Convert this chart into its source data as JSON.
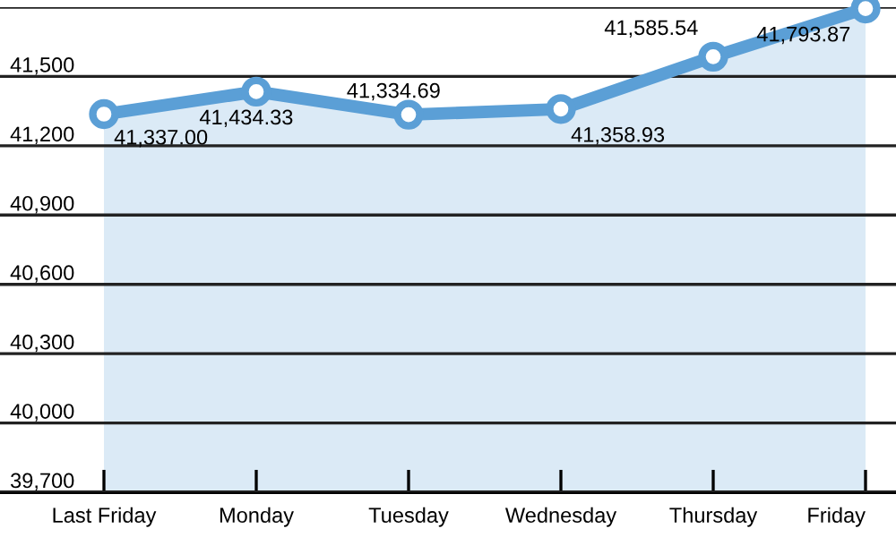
{
  "chart_data": {
    "type": "area",
    "categories": [
      "Last Friday",
      "Monday",
      "Tuesday",
      "Wednesday",
      "Thursday",
      "Friday"
    ],
    "series": [
      {
        "color": "#5b9fd6",
        "values": [
          41337.0,
          41434.33,
          41334.69,
          41358.93,
          41585.54,
          41793.87
        ],
        "value_labels": [
          "41,337.00",
          "41,434.33",
          "41,334.69",
          "41,358.93",
          "41,585.54",
          "41,793.87"
        ]
      }
    ],
    "marker": "circle",
    "line_style": "solid",
    "ylim": [
      39700,
      41800
    ],
    "yticks": [
      {
        "value": 39700,
        "label": "39,700"
      },
      {
        "value": 40000,
        "label": "40,000"
      },
      {
        "value": 40300,
        "label": "40,300"
      },
      {
        "value": 40600,
        "label": "40,600"
      },
      {
        "value": 40900,
        "label": "40,900"
      },
      {
        "value": 41200,
        "label": "41,200"
      },
      {
        "value": 41500,
        "label": "41,500"
      },
      {
        "value": 41800,
        "label": null
      }
    ],
    "grid": "y"
  }
}
